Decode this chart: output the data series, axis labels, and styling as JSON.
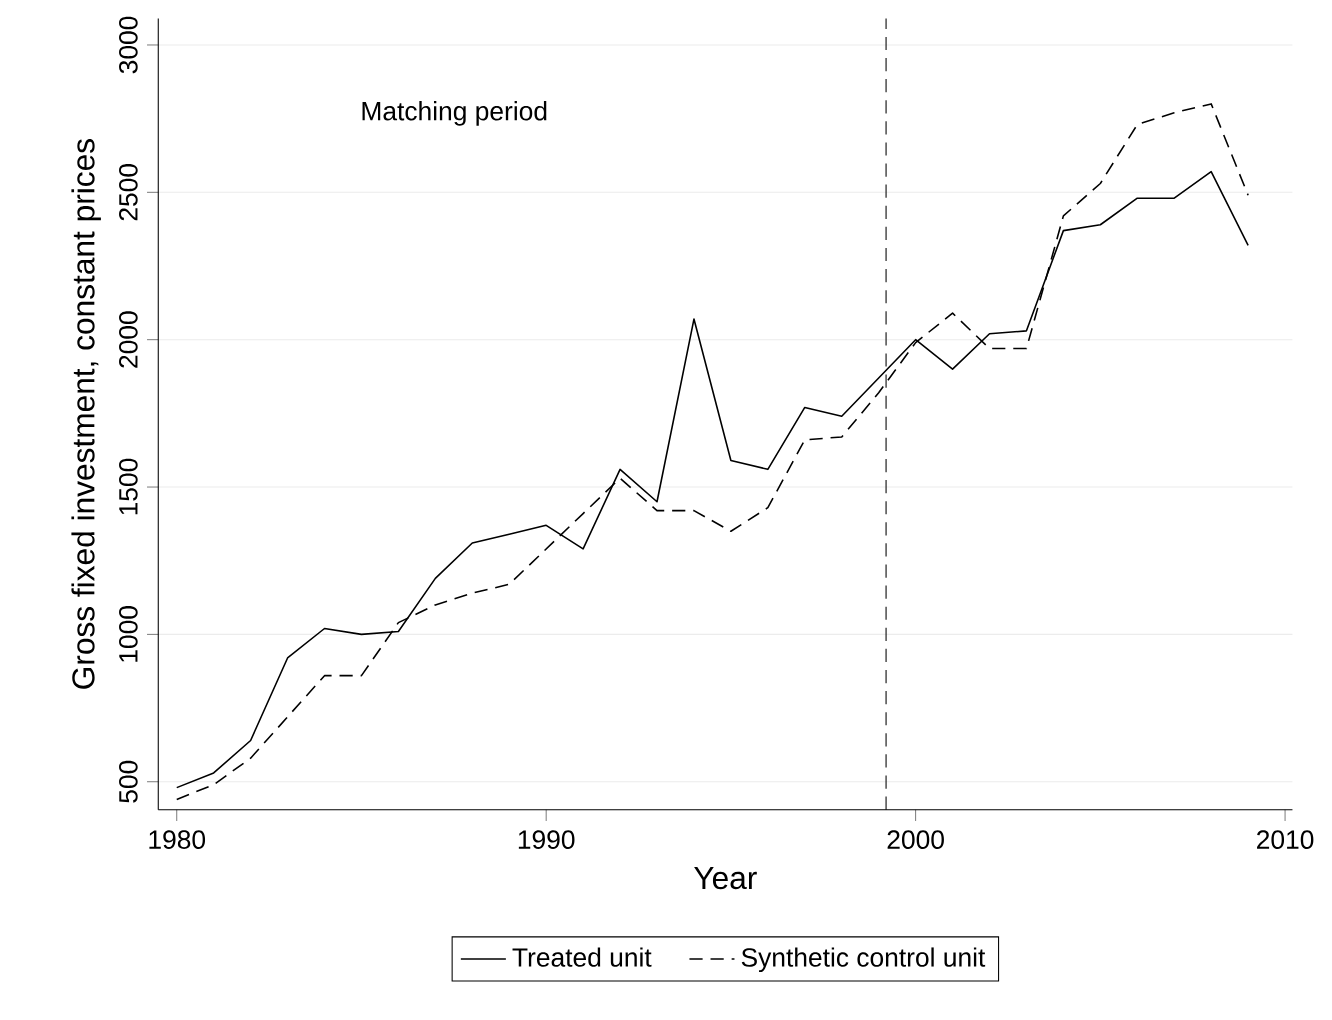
{
  "chart_data": {
    "type": "line",
    "xlabel": "Year",
    "ylabel": "Gross fixed investment, constant prices",
    "annotations": [
      "Matching period"
    ],
    "x": [
      1980,
      1981,
      1982,
      1983,
      1984,
      1985,
      1986,
      1987,
      1988,
      1989,
      1990,
      1991,
      1992,
      1993,
      1994,
      1995,
      1996,
      1997,
      1998,
      1999,
      2000,
      2001,
      2002,
      2003,
      2004,
      2005,
      2006,
      2007,
      2008,
      2009
    ],
    "series": [
      {
        "name": "Treated unit",
        "color": "#000000",
        "line_style": "solid",
        "values": [
          480,
          530,
          640,
          920,
          1020,
          1000,
          1010,
          1190,
          1310,
          1340,
          1370,
          1290,
          1560,
          1450,
          2070,
          1590,
          1560,
          1770,
          1740,
          1870,
          2000,
          1900,
          2020,
          2030,
          2370,
          2390,
          2480,
          2480,
          2570,
          2320
        ]
      },
      {
        "name": "Synthetic control unit",
        "color": "#000000",
        "line_style": "dashed",
        "values": [
          440,
          490,
          580,
          720,
          860,
          860,
          1040,
          1100,
          1140,
          1170,
          1290,
          1410,
          1530,
          1420,
          1420,
          1350,
          1430,
          1660,
          1670,
          1820,
          1990,
          2090,
          1970,
          1970,
          2420,
          2530,
          2730,
          2770,
          2800,
          2490
        ]
      }
    ],
    "ref_lines": [
      {
        "axis": "x",
        "value": 1999.2,
        "line_style": "dashed",
        "color": "#000000"
      }
    ],
    "xlim": [
      1979.5,
      2010.2
    ],
    "ylim": [
      405,
      3090
    ],
    "xticks": [
      1980,
      1990,
      2000,
      2010
    ],
    "yticks": [
      500,
      1000,
      1500,
      2000,
      2500,
      3000
    ],
    "grid": "y",
    "legend": "bottom",
    "marker": "none"
  }
}
